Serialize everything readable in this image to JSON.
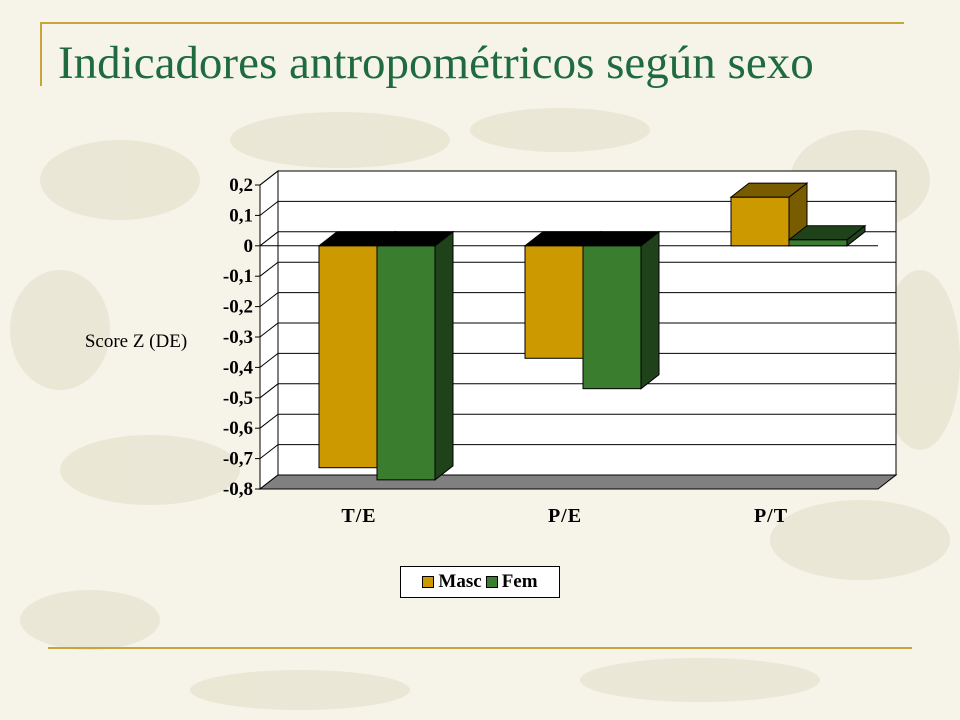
{
  "slide": {
    "title": "Indicadores antropométricos según sexo"
  },
  "chart_data": {
    "type": "bar",
    "style": "3d-clustered-column",
    "categories": [
      "T/E",
      "P/E",
      "P/T"
    ],
    "series": [
      {
        "name": "Masc",
        "values": [
          -0.73,
          -0.37,
          0.16
        ],
        "color": "#cc9900",
        "side_color": "#7a5c00"
      },
      {
        "name": "Fem",
        "values": [
          -0.77,
          -0.47,
          0.02
        ],
        "color": "#3a7d2e",
        "side_color": "#20421b"
      }
    ],
    "ylabel": "Score Z (DE)",
    "xlabel": "",
    "ylim": [
      -0.8,
      0.2
    ],
    "yticks": [
      0.2,
      0.1,
      0,
      -0.1,
      -0.2,
      -0.3,
      -0.4,
      -0.5,
      -0.6,
      -0.7,
      -0.8
    ],
    "ytick_labels": [
      "0,2",
      "0,1",
      "0",
      "-0,1",
      "-0,2",
      "-0,3",
      "-0,4",
      "-0,5",
      "-0,6",
      "-0,7",
      "-0,8"
    ],
    "grid": true,
    "legend_position": "bottom",
    "colors": {
      "wall": "#ffffff",
      "floor": "#808080",
      "grid": "#000000"
    }
  }
}
